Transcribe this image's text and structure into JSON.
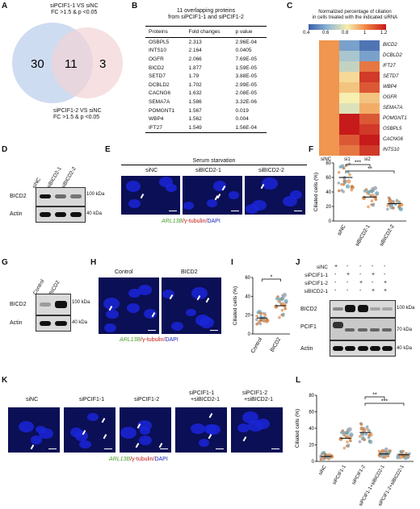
{
  "panels": [
    "A",
    "B",
    "C",
    "D",
    "E",
    "F",
    "G",
    "H",
    "I",
    "J",
    "K",
    "L"
  ],
  "venn": {
    "set1_label_lines": [
      "siPCIF1-1 VS siNC",
      "FC >1.5 & p <0.05"
    ],
    "set2_label_lines": [
      "siPCIF1-2 VS siNC",
      "FC >1.5 & p <0.05"
    ],
    "only1": "30",
    "overlap": "11",
    "only2": "3",
    "colors": {
      "set1": "#c6d6ee",
      "set2": "#f2d3d6",
      "overlap": "#d9c7d5"
    }
  },
  "table_b": {
    "title_lines": [
      "11 overlapping proteins",
      "from siPCIF1-1 and siPCIF1-2"
    ],
    "headers": [
      "Proteins",
      "Fold changes",
      "p value"
    ],
    "rows": [
      [
        "OSBPL5",
        "2.313",
        "2.96E-04"
      ],
      [
        "INTS10",
        "2.164",
        "0.0405"
      ],
      [
        "OGFR",
        "2.066",
        "7.69E-05"
      ],
      [
        "BICD2",
        "1.877",
        "1.59E-05"
      ],
      [
        "SETD7",
        "1.79",
        "3.88E-05"
      ],
      [
        "DCBLD2",
        "1.702",
        "2.99E-05"
      ],
      [
        "CACNG6",
        "1.632",
        "2.08E-05"
      ],
      [
        "SEMA7A",
        "1.586",
        "3.32E-06"
      ],
      [
        "POMGNT1",
        "1.567",
        "0.019"
      ],
      [
        "WBP4",
        "1.562",
        "0.004"
      ],
      [
        "IFT27",
        "1.549",
        "1.56E-04"
      ]
    ]
  },
  "heatmap_c": {
    "title_lines": [
      "Normalized percentage of ciliation",
      "in cells treated with the indicated siRNA"
    ],
    "scale_ticks": [
      "0.4",
      "0.6",
      "0.8",
      "1",
      "1.2"
    ],
    "columns": [
      "siNC",
      "si1",
      "si2"
    ],
    "rows": [
      "BICD2",
      "DCBLD2",
      "IFT27",
      "SETD7",
      "WBP4",
      "OGFR",
      "SEMA7A",
      "POMGNT1",
      "OSBPL5",
      "CACNG6",
      "INTS10"
    ],
    "values": [
      [
        1.0,
        0.55,
        0.45
      ],
      [
        1.0,
        0.65,
        0.55
      ],
      [
        1.0,
        0.7,
        1.05
      ],
      [
        1.0,
        0.85,
        1.15
      ],
      [
        1.0,
        0.9,
        1.1
      ],
      [
        1.0,
        0.8,
        0.9
      ],
      [
        1.0,
        0.75,
        0.95
      ],
      [
        1.0,
        1.25,
        1.1
      ],
      [
        1.0,
        1.2,
        1.15
      ],
      [
        1.0,
        1.1,
        1.2
      ],
      [
        1.0,
        1.05,
        1.15
      ]
    ]
  },
  "blot_d": {
    "lanes": [
      "siNC",
      "siBICD2-1",
      "siBICD2-2"
    ],
    "rows": [
      "BICD2",
      "Actin"
    ],
    "markers": [
      "100 kDa",
      "40 kDa"
    ],
    "bicd2_intensity": [
      1.0,
      0.55,
      0.5
    ]
  },
  "panel_e": {
    "title": "Serum starvation",
    "conditions": [
      "siNC",
      "siBICD2-1",
      "siBICD2-2"
    ],
    "stain_parts": [
      "ARL13B",
      "/γ-tubulin/",
      "DAPI"
    ]
  },
  "chart_f": {
    "type": "scatter",
    "ylabel": "Ciliated cells (%)",
    "ylim": [
      0,
      80
    ],
    "yticks": [
      "0",
      "20",
      "40",
      "60",
      "80"
    ],
    "categories": [
      "siNC",
      "siBICD2-1",
      "siBICD2-2"
    ],
    "means": [
      60,
      33,
      24
    ],
    "sig": [
      {
        "from": 0,
        "to": 1,
        "label": "***"
      },
      {
        "from": 0,
        "to": 2,
        "label": "**"
      }
    ]
  },
  "blot_g": {
    "lanes": [
      "Control",
      "BICD2"
    ],
    "rows": [
      "BICD2",
      "Actin"
    ],
    "markers": [
      "100 kDa",
      "40 kDa"
    ],
    "bicd2_intensity": [
      0.3,
      1.0
    ]
  },
  "panel_h": {
    "conditions": [
      "Control",
      "BICD2"
    ],
    "stain_parts": [
      "ARL13B",
      "/γ-tubulin/",
      "DAPI"
    ]
  },
  "chart_i": {
    "type": "scatter",
    "ylabel": "Ciliated cells (%)",
    "ylim": [
      0,
      60
    ],
    "yticks": [
      "0",
      "20",
      "40",
      "60"
    ],
    "categories": [
      "Control",
      "BICD2"
    ],
    "means": [
      17,
      30
    ],
    "sig": [
      {
        "from": 0,
        "to": 1,
        "label": "*"
      }
    ]
  },
  "blot_j": {
    "conditions": [
      {
        "name": "siNC",
        "marks": [
          "+",
          "-",
          "-",
          "-",
          "-"
        ]
      },
      {
        "name": "siPCIF1-1",
        "marks": [
          "-",
          "+",
          "-",
          "+",
          "-"
        ]
      },
      {
        "name": "siPCIF1-2",
        "marks": [
          "-",
          "-",
          "+",
          "-",
          "+"
        ]
      },
      {
        "name": "siBICD2-1",
        "marks": [
          "-",
          "-",
          "-",
          "+",
          "+"
        ]
      }
    ],
    "rows": [
      "BICD2",
      "PCIF1",
      "Actin"
    ],
    "markers": [
      "100 kDa",
      "70 kDa",
      "40 kDa"
    ],
    "bicd2_intensity": [
      0.4,
      1.0,
      1.0,
      0.2,
      0.2
    ]
  },
  "panel_k": {
    "conditions": [
      [
        "siNC"
      ],
      [
        "siPCIF1-1"
      ],
      [
        "siPCIF1-2"
      ],
      [
        "siPCIF1-1",
        "+siBICD2-1"
      ],
      [
        "siPCIF1-2",
        "+siBICD2-1"
      ]
    ],
    "stain_parts": [
      "ARL13B",
      "/γ-tubulin/",
      "DAPI"
    ]
  },
  "chart_l": {
    "type": "scatter",
    "ylabel": "Ciliated cells (%)",
    "ylim": [
      0,
      80
    ],
    "yticks": [
      "0",
      "20",
      "40",
      "60",
      "80"
    ],
    "categories": [
      "siNC",
      "siPCIF1-1",
      "siPCIF1-2",
      "siPCIF1-1+siBICD2-1",
      "siPCIF1-2+siBICD2-1"
    ],
    "means": [
      6,
      28,
      35,
      9,
      8
    ],
    "sig": [
      {
        "from": 2,
        "to": 3,
        "label": "**"
      },
      {
        "from": 2,
        "to": 4,
        "label": "***"
      }
    ]
  },
  "dot_colors": [
    "#6fa8b8",
    "#e39a62",
    "#9aa0b0",
    "#c87a40"
  ]
}
